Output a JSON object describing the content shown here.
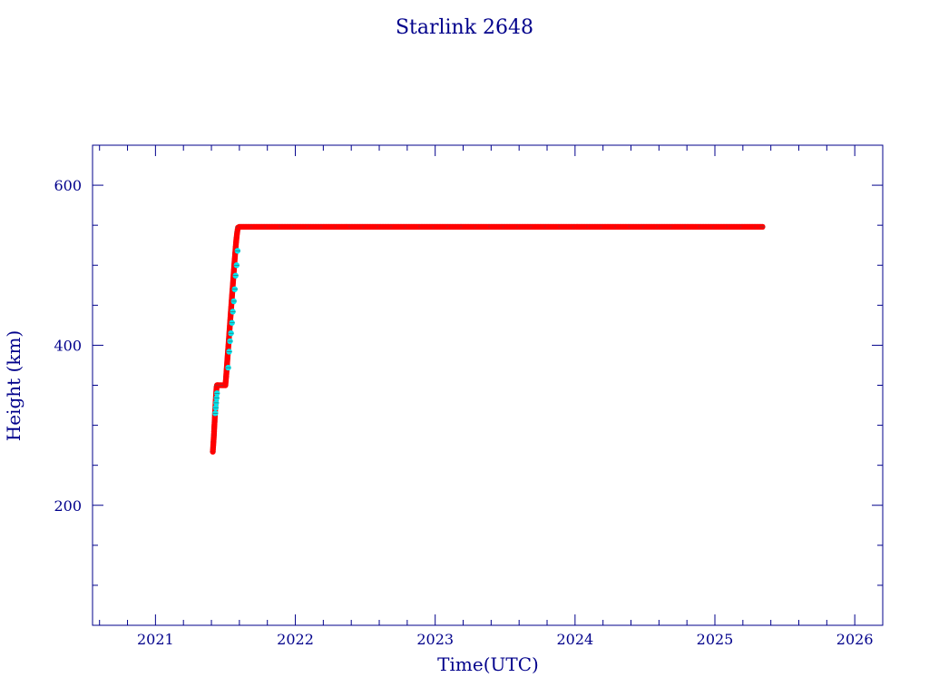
{
  "chart_data": {
    "type": "scatter",
    "title": "Starlink 2648",
    "xlabel": "Time(UTC)",
    "ylabel": "Height (km)",
    "xlim": [
      2020.55,
      2026.2
    ],
    "ylim": [
      50,
      650
    ],
    "xticks": [
      2021,
      2022,
      2023,
      2024,
      2025,
      2026
    ],
    "yticks": [
      200,
      400,
      600
    ],
    "colors": {
      "axis": "#00008b",
      "primary": "#ff0000",
      "secondary": "#00e5ee",
      "star": "#555555"
    },
    "series": [
      {
        "color": "#ff0000",
        "x": [
          2021.41,
          2021.412,
          2021.415,
          2021.418,
          2021.42,
          2021.423,
          2021.425,
          2021.428,
          2021.432,
          2021.437,
          2021.44,
          2021.445,
          2021.45,
          2021.46,
          2021.47,
          2021.48,
          2021.49,
          2021.5,
          2021.505,
          2021.51,
          2021.515,
          2021.52,
          2021.525,
          2021.53,
          2021.535,
          2021.54,
          2021.545,
          2021.55,
          2021.555,
          2021.56,
          2021.565,
          2021.57,
          2021.575,
          2021.58,
          2021.585,
          2021.59,
          2021.6,
          2021.7,
          2021.8,
          2021.9,
          2022.0,
          2022.1,
          2022.2,
          2022.3,
          2022.4,
          2022.5,
          2022.6,
          2022.7,
          2022.8,
          2022.9,
          2023.0,
          2023.1,
          2023.2,
          2023.3,
          2023.4,
          2023.5,
          2023.6,
          2023.7,
          2023.8,
          2023.9,
          2024.0,
          2024.1,
          2024.2,
          2024.3,
          2024.4,
          2024.5,
          2024.6,
          2024.7,
          2024.8,
          2024.9,
          2025.0,
          2025.1,
          2025.2,
          2025.3,
          2025.34
        ],
        "y": [
          267,
          272,
          280,
          288,
          296,
          305,
          313,
          322,
          335,
          348,
          350,
          350,
          350,
          350,
          350,
          350,
          350,
          350,
          360,
          372,
          384,
          396,
          408,
          420,
          432,
          444,
          456,
          468,
          480,
          492,
          504,
          515,
          526,
          535,
          542,
          547,
          548,
          548,
          548,
          548,
          548,
          548,
          548,
          548,
          548,
          548,
          548,
          548,
          548,
          548,
          548,
          548,
          548,
          548,
          548,
          548,
          548,
          548,
          548,
          548,
          548,
          548,
          548,
          548,
          548,
          548,
          548,
          548,
          548,
          548,
          548,
          548,
          548,
          548,
          548
        ]
      },
      {
        "color": "#00e5ee",
        "x": [
          2021.428,
          2021.431,
          2021.434,
          2021.437,
          2021.44,
          2021.52,
          2021.527,
          2021.533,
          2021.54,
          2021.547,
          2021.553,
          2021.56,
          2021.567,
          2021.573,
          2021.58,
          2021.587
        ],
        "y": [
          315,
          322,
          328,
          334,
          340,
          372,
          392,
          405,
          415,
          428,
          442,
          455,
          470,
          487,
          500,
          518
        ]
      }
    ]
  }
}
